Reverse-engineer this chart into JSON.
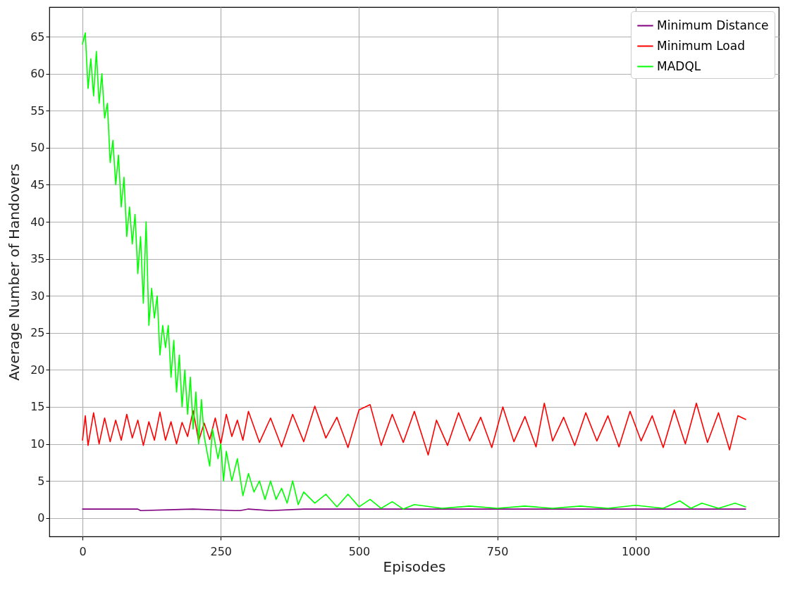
{
  "chart_data": {
    "type": "line",
    "xlabel": "Episodes",
    "ylabel": "Average Number of Handovers",
    "xlim": [
      -60,
      1259
    ],
    "ylim": [
      -2.5,
      69
    ],
    "xticks": [
      0,
      250,
      500,
      750,
      1000
    ],
    "yticks": [
      0,
      5,
      10,
      15,
      20,
      25,
      30,
      35,
      40,
      45,
      50,
      55,
      60,
      65
    ],
    "grid": true,
    "legend": "top right",
    "line_style": "solid",
    "marker": "none",
    "series": [
      {
        "name": "Minimum Distance",
        "color": "#800080",
        "x": [
          0,
          100,
          105,
          200,
          275,
          285,
          300,
          340,
          400,
          500,
          600,
          700,
          800,
          900,
          1000,
          1100,
          1199
        ],
        "values": [
          1.2,
          1.2,
          1.0,
          1.2,
          1.0,
          1.0,
          1.2,
          1.0,
          1.2,
          1.2,
          1.2,
          1.2,
          1.2,
          1.2,
          1.2,
          1.2,
          1.2
        ]
      },
      {
        "name": "Minimum Load",
        "color": "#ff0000",
        "x": [
          0,
          5,
          10,
          20,
          30,
          40,
          50,
          60,
          70,
          80,
          90,
          100,
          110,
          120,
          130,
          140,
          150,
          160,
          170,
          180,
          190,
          200,
          210,
          220,
          230,
          240,
          250,
          260,
          270,
          280,
          290,
          300,
          320,
          340,
          360,
          380,
          400,
          420,
          440,
          460,
          480,
          500,
          520,
          540,
          560,
          580,
          600,
          625,
          640,
          660,
          680,
          700,
          720,
          740,
          760,
          780,
          800,
          820,
          835,
          850,
          870,
          890,
          910,
          930,
          950,
          970,
          990,
          1010,
          1030,
          1050,
          1070,
          1090,
          1110,
          1130,
          1150,
          1170,
          1185,
          1199
        ],
        "values": [
          10.5,
          13.8,
          9.8,
          14.2,
          10,
          13.5,
          10.3,
          13.2,
          10.5,
          14,
          10.8,
          13.2,
          9.8,
          13,
          10.5,
          14.3,
          10.5,
          13,
          10,
          12.9,
          11,
          14.5,
          10.4,
          12.8,
          10.6,
          13.5,
          10,
          14,
          11,
          13.2,
          10.5,
          14.4,
          10.2,
          13.5,
          9.6,
          14,
          10.3,
          15.1,
          10.8,
          13.6,
          9.5,
          14.6,
          15.3,
          9.8,
          14,
          10.2,
          14.4,
          8.5,
          13.2,
          9.8,
          14.2,
          10.4,
          13.6,
          9.5,
          15,
          10.3,
          13.7,
          9.6,
          15.5,
          10.4,
          13.6,
          9.8,
          14.2,
          10.4,
          13.8,
          9.6,
          14.4,
          10.4,
          13.8,
          9.5,
          14.6,
          10,
          15.5,
          10.2,
          14.2,
          9.2,
          13.8,
          13.3
        ]
      },
      {
        "name": "MADQL",
        "color": "#00ff00",
        "x": [
          0,
          5,
          10,
          15,
          20,
          25,
          30,
          35,
          40,
          45,
          50,
          55,
          60,
          65,
          70,
          75,
          80,
          85,
          90,
          95,
          100,
          105,
          110,
          115,
          120,
          125,
          130,
          135,
          140,
          145,
          150,
          155,
          160,
          165,
          170,
          175,
          180,
          185,
          190,
          195,
          200,
          205,
          210,
          215,
          220,
          230,
          235,
          245,
          250,
          255,
          260,
          270,
          280,
          290,
          300,
          310,
          320,
          330,
          340,
          350,
          360,
          370,
          380,
          390,
          400,
          420,
          440,
          460,
          480,
          500,
          520,
          540,
          560,
          580,
          600,
          650,
          700,
          750,
          800,
          850,
          900,
          950,
          1000,
          1050,
          1080,
          1100,
          1120,
          1150,
          1180,
          1199
        ],
        "values": [
          64,
          65.5,
          58,
          62,
          57,
          63,
          56,
          60,
          54,
          56,
          48,
          51,
          45,
          49,
          42,
          46,
          38,
          42,
          37,
          41,
          33,
          38,
          29,
          40,
          26,
          31,
          27,
          30,
          22,
          26,
          23,
          26,
          19,
          24,
          17,
          22,
          15,
          20,
          14,
          19,
          12,
          17,
          10,
          16,
          11,
          7,
          12,
          8,
          10,
          5,
          9,
          5,
          8,
          3,
          6,
          3.5,
          5,
          2.5,
          5,
          2.5,
          4,
          2,
          5,
          1.8,
          3.5,
          2,
          3.2,
          1.5,
          3.2,
          1.5,
          2.5,
          1.3,
          2.2,
          1.2,
          1.8,
          1.3,
          1.6,
          1.3,
          1.6,
          1.3,
          1.6,
          1.3,
          1.7,
          1.3,
          2.3,
          1.3,
          2,
          1.3,
          2,
          1.5
        ]
      }
    ]
  }
}
